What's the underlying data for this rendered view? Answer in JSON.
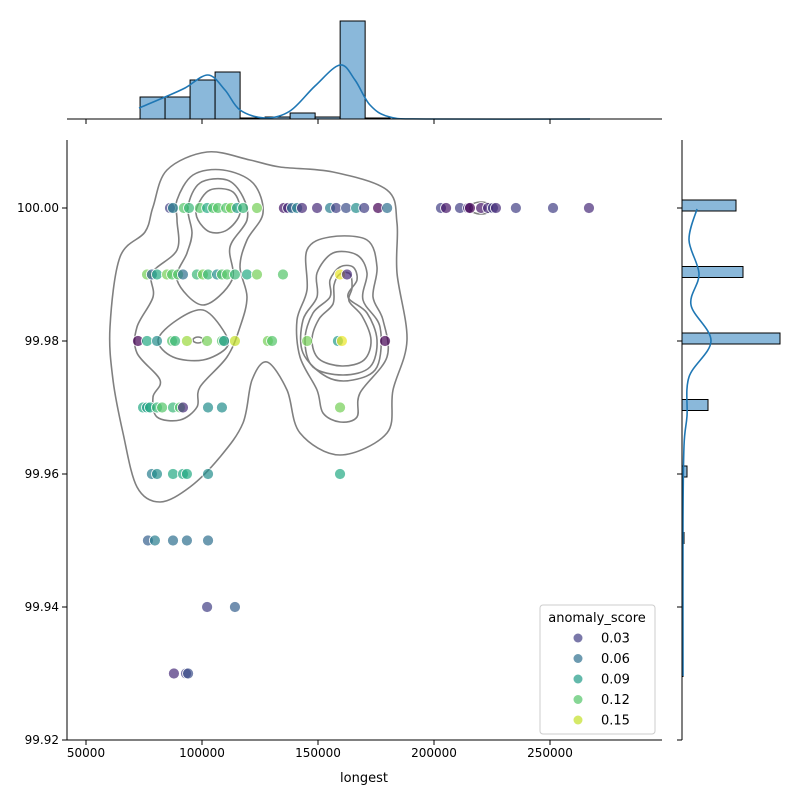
{
  "chart_data": {
    "type": "scatter",
    "subtype": "jointplot with KDE contours and marginal histograms",
    "xlabel": "longest",
    "ylabel": "",
    "xlim": [
      41800,
      298000
    ],
    "ylim": [
      99.92,
      100.0102
    ],
    "xticks": [
      50000,
      100000,
      150000,
      200000,
      250000
    ],
    "xtick_labels": [
      "50000",
      "100000",
      "150000",
      "200000",
      "250000"
    ],
    "yticks": [
      100.0,
      99.98,
      99.96,
      99.94,
      99.92
    ],
    "ytick_labels": [
      "100.00",
      "99.98",
      "99.96",
      "99.94",
      "99.92"
    ],
    "grid": false,
    "hue": "anomaly_score",
    "colormap": "viridis",
    "hue_range": [
      0,
      0.165
    ],
    "legend": {
      "title": "anomaly_score",
      "placement": "lower-right",
      "entries": [
        "0.03",
        "0.06",
        "0.09",
        "0.12",
        "0.15"
      ],
      "values": [
        0.03,
        0.06,
        0.09,
        0.12,
        0.15
      ]
    },
    "contour_color": "#808080",
    "marginal_color": "#8ab8da",
    "kde_color": "#1f77b4",
    "points": [
      {
        "x": 86200,
        "y": 100.0,
        "s": 0.03
      },
      {
        "x": 87500,
        "y": 100.0,
        "s": 0.07
      },
      {
        "x": 92200,
        "y": 100.0,
        "s": 0.12
      },
      {
        "x": 94400,
        "y": 100.0,
        "s": 0.11
      },
      {
        "x": 99100,
        "y": 100.0,
        "s": 0.12
      },
      {
        "x": 102200,
        "y": 100.0,
        "s": 0.1
      },
      {
        "x": 104800,
        "y": 100.0,
        "s": 0.12
      },
      {
        "x": 106900,
        "y": 100.0,
        "s": 0.12
      },
      {
        "x": 110400,
        "y": 100.0,
        "s": 0.12
      },
      {
        "x": 112500,
        "y": 100.0,
        "s": 0.13
      },
      {
        "x": 115100,
        "y": 100.0,
        "s": 0.09
      },
      {
        "x": 117700,
        "y": 100.0,
        "s": 0.11
      },
      {
        "x": 123700,
        "y": 100.0,
        "s": 0.13
      },
      {
        "x": 135300,
        "y": 100.0,
        "s": 0.01
      },
      {
        "x": 137100,
        "y": 100.0,
        "s": 0.02
      },
      {
        "x": 138800,
        "y": 100.0,
        "s": 0.06
      },
      {
        "x": 141000,
        "y": 100.0,
        "s": 0.07
      },
      {
        "x": 143100,
        "y": 100.0,
        "s": 0.02
      },
      {
        "x": 149600,
        "y": 100.0,
        "s": 0.02
      },
      {
        "x": 155200,
        "y": 100.0,
        "s": 0.07
      },
      {
        "x": 157800,
        "y": 100.0,
        "s": 0.03
      },
      {
        "x": 162100,
        "y": 100.0,
        "s": 0.04
      },
      {
        "x": 166400,
        "y": 100.0,
        "s": 0.08
      },
      {
        "x": 169900,
        "y": 100.0,
        "s": 0.03
      },
      {
        "x": 175900,
        "y": 100.0,
        "s": 0.0
      },
      {
        "x": 179800,
        "y": 100.0,
        "s": 0.06
      },
      {
        "x": 203000,
        "y": 100.0,
        "s": 0.03
      },
      {
        "x": 205200,
        "y": 100.0,
        "s": 0.01
      },
      {
        "x": 211200,
        "y": 100.0,
        "s": 0.03
      },
      {
        "x": 214700,
        "y": 100.0,
        "s": 0.02
      },
      {
        "x": 215500,
        "y": 100.0,
        "s": 0.0
      },
      {
        "x": 220300,
        "y": 100.0,
        "s": 0.01
      },
      {
        "x": 223300,
        "y": 100.0,
        "s": 0.02
      },
      {
        "x": 225400,
        "y": 100.0,
        "s": 0.03
      },
      {
        "x": 226700,
        "y": 100.0,
        "s": 0.02
      },
      {
        "x": 235300,
        "y": 100.0,
        "s": 0.03
      },
      {
        "x": 251300,
        "y": 100.0,
        "s": 0.03
      },
      {
        "x": 266800,
        "y": 100.0,
        "s": 0.02
      },
      {
        "x": 76300,
        "y": 99.99,
        "s": 0.13
      },
      {
        "x": 78400,
        "y": 99.99,
        "s": 0.05
      },
      {
        "x": 80600,
        "y": 99.99,
        "s": 0.1
      },
      {
        "x": 84900,
        "y": 99.99,
        "s": 0.13
      },
      {
        "x": 87100,
        "y": 99.99,
        "s": 0.12
      },
      {
        "x": 89700,
        "y": 99.99,
        "s": 0.12
      },
      {
        "x": 91800,
        "y": 99.99,
        "s": 0.06
      },
      {
        "x": 97800,
        "y": 99.99,
        "s": 0.11
      },
      {
        "x": 100400,
        "y": 99.99,
        "s": 0.13
      },
      {
        "x": 102600,
        "y": 99.99,
        "s": 0.11
      },
      {
        "x": 106500,
        "y": 99.99,
        "s": 0.08
      },
      {
        "x": 108600,
        "y": 99.99,
        "s": 0.12
      },
      {
        "x": 110800,
        "y": 99.99,
        "s": 0.12
      },
      {
        "x": 114200,
        "y": 99.99,
        "s": 0.11
      },
      {
        "x": 119400,
        "y": 99.99,
        "s": 0.1
      },
      {
        "x": 123700,
        "y": 99.99,
        "s": 0.13
      },
      {
        "x": 134900,
        "y": 99.99,
        "s": 0.12
      },
      {
        "x": 159500,
        "y": 99.99,
        "s": 0.16
      },
      {
        "x": 162500,
        "y": 99.99,
        "s": 0.02
      },
      {
        "x": 72400,
        "y": 99.98,
        "s": 0.0
      },
      {
        "x": 76300,
        "y": 99.98,
        "s": 0.1
      },
      {
        "x": 80600,
        "y": 99.98,
        "s": 0.08
      },
      {
        "x": 87100,
        "y": 99.98,
        "s": 0.12
      },
      {
        "x": 88400,
        "y": 99.98,
        "s": 0.11
      },
      {
        "x": 93500,
        "y": 99.98,
        "s": 0.14
      },
      {
        "x": 102200,
        "y": 99.98,
        "s": 0.13
      },
      {
        "x": 108600,
        "y": 99.98,
        "s": 0.12
      },
      {
        "x": 109500,
        "y": 99.98,
        "s": 0.09
      },
      {
        "x": 114200,
        "y": 99.98,
        "s": 0.15
      },
      {
        "x": 128400,
        "y": 99.98,
        "s": 0.13
      },
      {
        "x": 130200,
        "y": 99.98,
        "s": 0.12
      },
      {
        "x": 145300,
        "y": 99.98,
        "s": 0.13
      },
      {
        "x": 158600,
        "y": 99.98,
        "s": 0.09
      },
      {
        "x": 160300,
        "y": 99.98,
        "s": 0.16
      },
      {
        "x": 178900,
        "y": 99.98,
        "s": 0.0
      },
      {
        "x": 74600,
        "y": 99.97,
        "s": 0.1
      },
      {
        "x": 76300,
        "y": 99.97,
        "s": 0.09
      },
      {
        "x": 77600,
        "y": 99.97,
        "s": 0.1
      },
      {
        "x": 80600,
        "y": 99.97,
        "s": 0.11
      },
      {
        "x": 82800,
        "y": 99.97,
        "s": 0.12
      },
      {
        "x": 87500,
        "y": 99.97,
        "s": 0.11
      },
      {
        "x": 90500,
        "y": 99.97,
        "s": 0.12
      },
      {
        "x": 91800,
        "y": 99.97,
        "s": 0.02
      },
      {
        "x": 102600,
        "y": 99.97,
        "s": 0.08
      },
      {
        "x": 108600,
        "y": 99.97,
        "s": 0.08
      },
      {
        "x": 159500,
        "y": 99.97,
        "s": 0.13
      },
      {
        "x": 78400,
        "y": 99.96,
        "s": 0.07
      },
      {
        "x": 80600,
        "y": 99.96,
        "s": 0.08
      },
      {
        "x": 87500,
        "y": 99.96,
        "s": 0.1
      },
      {
        "x": 91800,
        "y": 99.96,
        "s": 0.1
      },
      {
        "x": 93500,
        "y": 99.96,
        "s": 0.1
      },
      {
        "x": 102600,
        "y": 99.96,
        "s": 0.08
      },
      {
        "x": 159500,
        "y": 99.96,
        "s": 0.1
      },
      {
        "x": 76700,
        "y": 99.95,
        "s": 0.05
      },
      {
        "x": 79700,
        "y": 99.95,
        "s": 0.07
      },
      {
        "x": 87500,
        "y": 99.95,
        "s": 0.06
      },
      {
        "x": 93500,
        "y": 99.95,
        "s": 0.06
      },
      {
        "x": 102600,
        "y": 99.95,
        "s": 0.06
      },
      {
        "x": 102200,
        "y": 99.94,
        "s": 0.03
      },
      {
        "x": 114200,
        "y": 99.94,
        "s": 0.05
      },
      {
        "x": 87900,
        "y": 99.93,
        "s": 0.02
      },
      {
        "x": 93100,
        "y": 99.93,
        "s": 0.03
      },
      {
        "x": 94000,
        "y": 99.93,
        "s": 0.04
      }
    ],
    "marginal_x_hist": {
      "bin_start": 73300,
      "bin_width": 10780,
      "counts": [
        22,
        22,
        39,
        47,
        1,
        2,
        6,
        2,
        98,
        1
      ]
    },
    "marginal_y_hist": {
      "values": [
        100.0,
        99.99,
        99.98,
        99.97,
        99.96,
        99.95,
        99.94,
        99.93
      ],
      "counts": [
        54,
        61,
        98,
        26,
        5,
        2,
        1,
        1
      ]
    }
  }
}
